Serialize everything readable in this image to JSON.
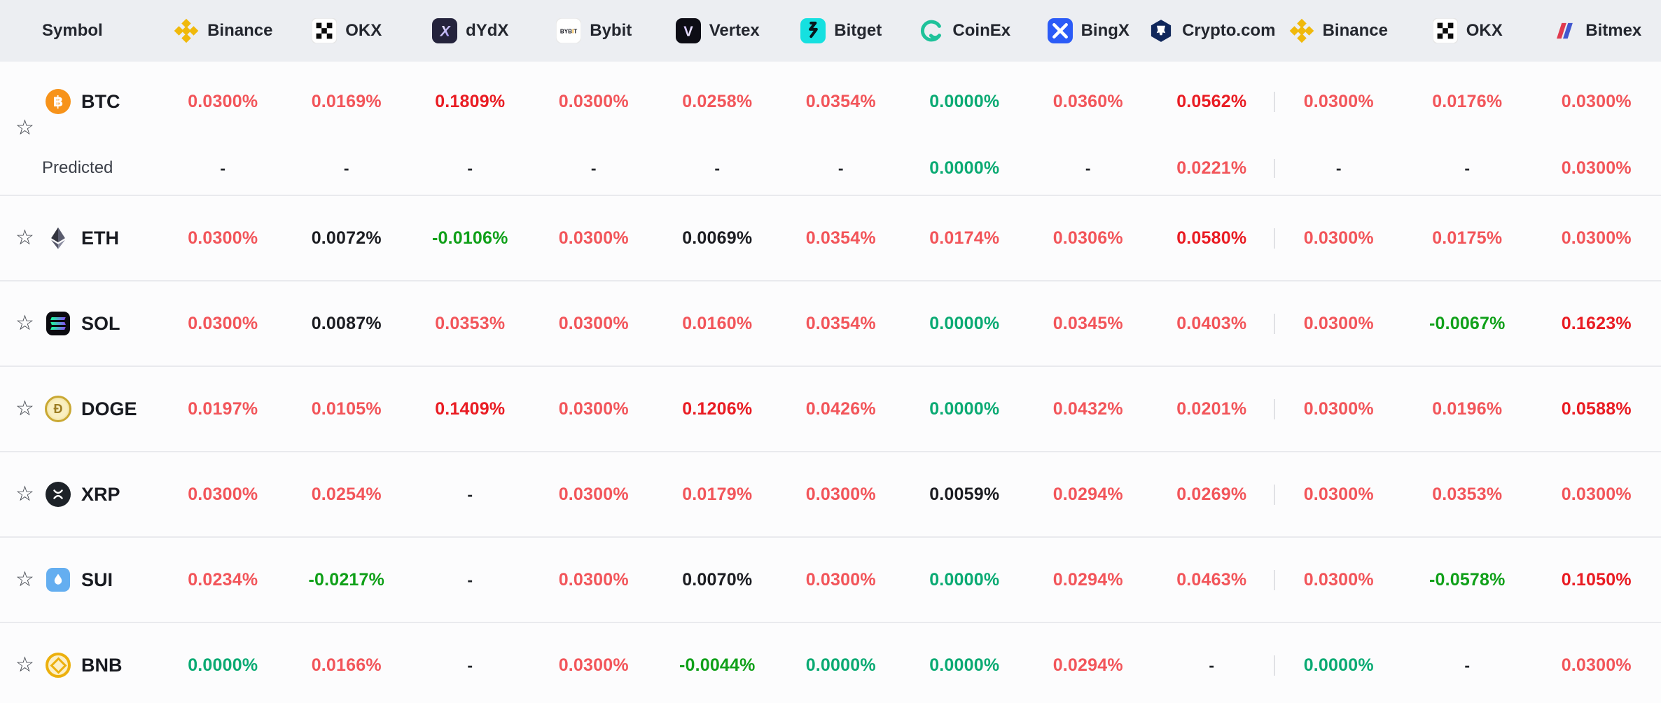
{
  "palette": {
    "red": "#f2555a",
    "red_strong": "#e91c23",
    "green_zero": "#0aaa73",
    "green_neg": "#10a019",
    "neutral": "#1c1d22",
    "dashc": "#212429",
    "header_bg": "#eceef2",
    "row_bg": "#fcfcfd",
    "border": "#e9eaee",
    "divider": "#e0e1e5",
    "symbol_text": "#181a20",
    "predicted_text": "#3b3f48",
    "header_text": "#23262e"
  },
  "header": {
    "symbol_label": "Symbol",
    "exchanges": [
      {
        "name": "Binance",
        "icon": "binance-icon"
      },
      {
        "name": "OKX",
        "icon": "okx-icon"
      },
      {
        "name": "dYdX",
        "icon": "dydx-icon"
      },
      {
        "name": "Bybit",
        "icon": "bybit-icon"
      },
      {
        "name": "Vertex",
        "icon": "vertex-icon"
      },
      {
        "name": "Bitget",
        "icon": "bitget-icon"
      },
      {
        "name": "CoinEx",
        "icon": "coinex-icon"
      },
      {
        "name": "BingX",
        "icon": "bingx-icon"
      },
      {
        "name": "Crypto.com",
        "icon": "cryptocom-icon"
      }
    ],
    "exchanges_right": [
      {
        "name": "Binance",
        "icon": "binance-icon"
      },
      {
        "name": "OKX",
        "icon": "okx-icon"
      },
      {
        "name": "Bitmex",
        "icon": "bitmex-icon"
      }
    ]
  },
  "predicted_label": "Predicted",
  "rows": [
    {
      "symbol": "BTC",
      "icon": "btc-icon",
      "values": [
        {
          "v": "0.0300%",
          "tone": "red"
        },
        {
          "v": "0.0169%",
          "tone": "red"
        },
        {
          "v": "0.1809%",
          "tone": "redStrong"
        },
        {
          "v": "0.0300%",
          "tone": "red"
        },
        {
          "v": "0.0258%",
          "tone": "red"
        },
        {
          "v": "0.0354%",
          "tone": "red"
        },
        {
          "v": "0.0000%",
          "tone": "greenZero"
        },
        {
          "v": "0.0360%",
          "tone": "red"
        },
        {
          "v": "0.0562%",
          "tone": "redStrong"
        },
        {
          "v": "0.0300%",
          "tone": "red"
        },
        {
          "v": "0.0176%",
          "tone": "red"
        },
        {
          "v": "0.0300%",
          "tone": "red"
        }
      ],
      "predicted": [
        {
          "v": "-",
          "tone": "dash"
        },
        {
          "v": "-",
          "tone": "dash"
        },
        {
          "v": "-",
          "tone": "dash"
        },
        {
          "v": "-",
          "tone": "dash"
        },
        {
          "v": "-",
          "tone": "dash"
        },
        {
          "v": "-",
          "tone": "dash"
        },
        {
          "v": "0.0000%",
          "tone": "greenZero"
        },
        {
          "v": "-",
          "tone": "dash"
        },
        {
          "v": "0.0221%",
          "tone": "red"
        },
        {
          "v": "-",
          "tone": "dash"
        },
        {
          "v": "-",
          "tone": "dash"
        },
        {
          "v": "0.0300%",
          "tone": "red"
        }
      ]
    },
    {
      "symbol": "ETH",
      "icon": "eth-icon",
      "values": [
        {
          "v": "0.0300%",
          "tone": "red"
        },
        {
          "v": "0.0072%",
          "tone": "neutral"
        },
        {
          "v": "-0.0106%",
          "tone": "greenNeg"
        },
        {
          "v": "0.0300%",
          "tone": "red"
        },
        {
          "v": "0.0069%",
          "tone": "neutral"
        },
        {
          "v": "0.0354%",
          "tone": "red"
        },
        {
          "v": "0.0174%",
          "tone": "red"
        },
        {
          "v": "0.0306%",
          "tone": "red"
        },
        {
          "v": "0.0580%",
          "tone": "redStrong"
        },
        {
          "v": "0.0300%",
          "tone": "red"
        },
        {
          "v": "0.0175%",
          "tone": "red"
        },
        {
          "v": "0.0300%",
          "tone": "red"
        }
      ]
    },
    {
      "symbol": "SOL",
      "icon": "sol-icon",
      "values": [
        {
          "v": "0.0300%",
          "tone": "red"
        },
        {
          "v": "0.0087%",
          "tone": "neutral"
        },
        {
          "v": "0.0353%",
          "tone": "red"
        },
        {
          "v": "0.0300%",
          "tone": "red"
        },
        {
          "v": "0.0160%",
          "tone": "red"
        },
        {
          "v": "0.0354%",
          "tone": "red"
        },
        {
          "v": "0.0000%",
          "tone": "greenZero"
        },
        {
          "v": "0.0345%",
          "tone": "red"
        },
        {
          "v": "0.0403%",
          "tone": "red"
        },
        {
          "v": "0.0300%",
          "tone": "red"
        },
        {
          "v": "-0.0067%",
          "tone": "greenNeg"
        },
        {
          "v": "0.1623%",
          "tone": "redStrong"
        }
      ]
    },
    {
      "symbol": "DOGE",
      "icon": "doge-icon",
      "values": [
        {
          "v": "0.0197%",
          "tone": "red"
        },
        {
          "v": "0.0105%",
          "tone": "red"
        },
        {
          "v": "0.1409%",
          "tone": "redStrong"
        },
        {
          "v": "0.0300%",
          "tone": "red"
        },
        {
          "v": "0.1206%",
          "tone": "redStrong"
        },
        {
          "v": "0.0426%",
          "tone": "red"
        },
        {
          "v": "0.0000%",
          "tone": "greenZero"
        },
        {
          "v": "0.0432%",
          "tone": "red"
        },
        {
          "v": "0.0201%",
          "tone": "red"
        },
        {
          "v": "0.0300%",
          "tone": "red"
        },
        {
          "v": "0.0196%",
          "tone": "red"
        },
        {
          "v": "0.0588%",
          "tone": "redStrong"
        }
      ]
    },
    {
      "symbol": "XRP",
      "icon": "xrp-icon",
      "values": [
        {
          "v": "0.0300%",
          "tone": "red"
        },
        {
          "v": "0.0254%",
          "tone": "red"
        },
        {
          "v": "-",
          "tone": "dash"
        },
        {
          "v": "0.0300%",
          "tone": "red"
        },
        {
          "v": "0.0179%",
          "tone": "red"
        },
        {
          "v": "0.0300%",
          "tone": "red"
        },
        {
          "v": "0.0059%",
          "tone": "neutral"
        },
        {
          "v": "0.0294%",
          "tone": "red"
        },
        {
          "v": "0.0269%",
          "tone": "red"
        },
        {
          "v": "0.0300%",
          "tone": "red"
        },
        {
          "v": "0.0353%",
          "tone": "red"
        },
        {
          "v": "0.0300%",
          "tone": "red"
        }
      ]
    },
    {
      "symbol": "SUI",
      "icon": "sui-icon",
      "values": [
        {
          "v": "0.0234%",
          "tone": "red"
        },
        {
          "v": "-0.0217%",
          "tone": "greenNeg"
        },
        {
          "v": "-",
          "tone": "dash"
        },
        {
          "v": "0.0300%",
          "tone": "red"
        },
        {
          "v": "0.0070%",
          "tone": "neutral"
        },
        {
          "v": "0.0300%",
          "tone": "red"
        },
        {
          "v": "0.0000%",
          "tone": "greenZero"
        },
        {
          "v": "0.0294%",
          "tone": "red"
        },
        {
          "v": "0.0463%",
          "tone": "red"
        },
        {
          "v": "0.0300%",
          "tone": "red"
        },
        {
          "v": "-0.0578%",
          "tone": "greenNeg"
        },
        {
          "v": "0.1050%",
          "tone": "redStrong"
        }
      ]
    },
    {
      "symbol": "BNB",
      "icon": "bnb-icon",
      "values": [
        {
          "v": "0.0000%",
          "tone": "greenZero"
        },
        {
          "v": "0.0166%",
          "tone": "red"
        },
        {
          "v": "-",
          "tone": "dash"
        },
        {
          "v": "0.0300%",
          "tone": "red"
        },
        {
          "v": "-0.0044%",
          "tone": "greenNeg"
        },
        {
          "v": "0.0000%",
          "tone": "greenZero"
        },
        {
          "v": "0.0000%",
          "tone": "greenZero"
        },
        {
          "v": "0.0294%",
          "tone": "red"
        },
        {
          "v": "-",
          "tone": "dash"
        },
        {
          "v": "0.0000%",
          "tone": "greenZero"
        },
        {
          "v": "-",
          "tone": "dash"
        },
        {
          "v": "0.0300%",
          "tone": "red"
        }
      ]
    }
  ]
}
